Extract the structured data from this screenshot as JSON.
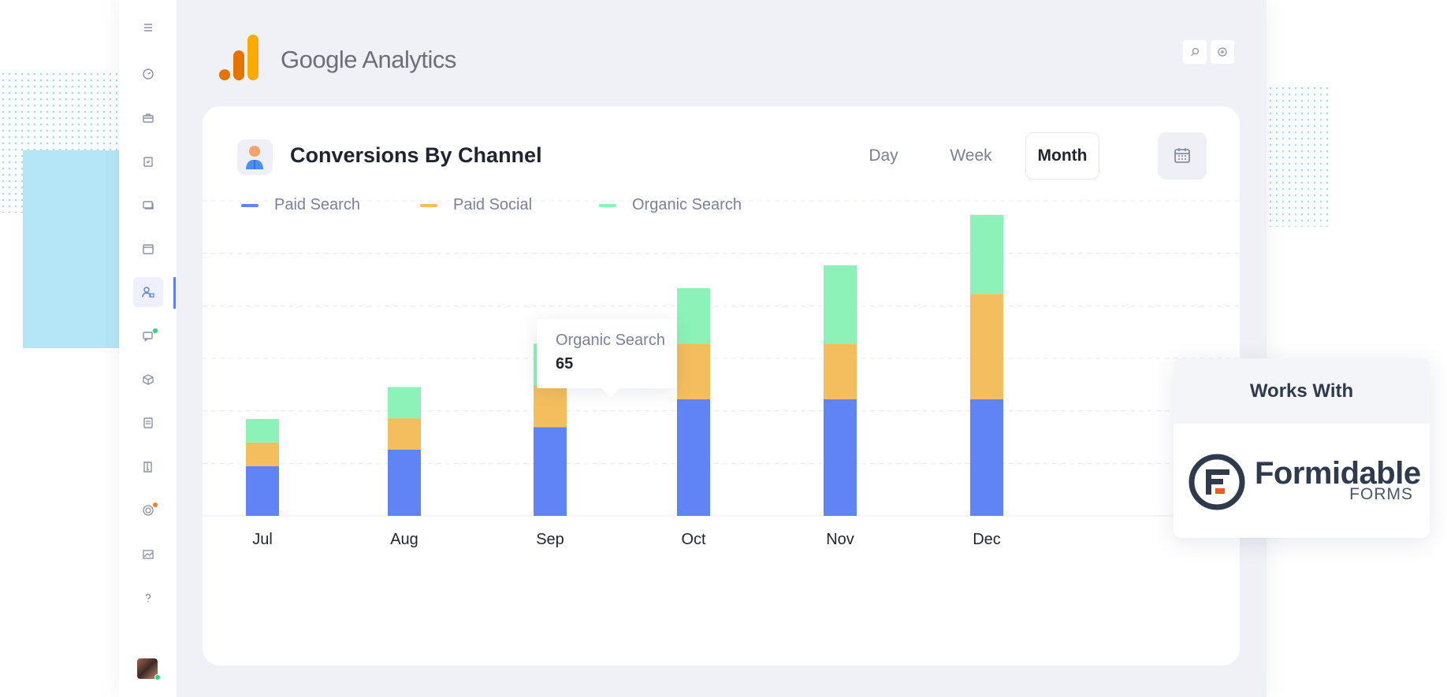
{
  "app": {
    "name": "Google Analytics"
  },
  "sidebar": {
    "icons": [
      "menu-icon",
      "dashboard-icon",
      "briefcase-icon",
      "clipboard-icon",
      "layers-icon",
      "calendar-icon",
      "users-icon",
      "chat-icon",
      "cube-icon",
      "document-icon",
      "book-icon",
      "target-icon",
      "chart-icon",
      "help-icon"
    ],
    "active_icon": "users-icon"
  },
  "header": {
    "search_icon": "search-icon",
    "add_icon": "add-icon"
  },
  "card": {
    "title": "Conversions By Channel",
    "periods": [
      "Day",
      "Week",
      "Month"
    ],
    "active_period": "Month",
    "calendar_icon": "calendar-icon"
  },
  "colors": {
    "paid_search": "#6083f5",
    "paid_social": "#f4be5e",
    "organic_search": "#8df2b8",
    "accent": "#5b7ef5"
  },
  "tooltip": {
    "series": "Organic Search",
    "value": "65"
  },
  "chart_data": {
    "type": "bar",
    "stacked": true,
    "categories": [
      "Jul",
      "Aug",
      "Sep",
      "Oct",
      "Nov",
      "Dec"
    ],
    "series": [
      {
        "name": "Paid Search",
        "values": [
          78,
          104,
          139,
          183,
          183,
          183
        ]
      },
      {
        "name": "Paid Social",
        "values": [
          37,
          49,
          66,
          87,
          87,
          165
        ]
      },
      {
        "name": "Organic Search",
        "values": [
          37,
          49,
          65,
          87,
          123,
          124
        ]
      }
    ],
    "ylim": [
      0,
      494
    ],
    "grid": true,
    "legend": "top-left",
    "xlabel": "",
    "ylabel": ""
  },
  "works_with": {
    "heading": "Works With",
    "brand": "Formidable",
    "brand_sub": "FORMS"
  }
}
